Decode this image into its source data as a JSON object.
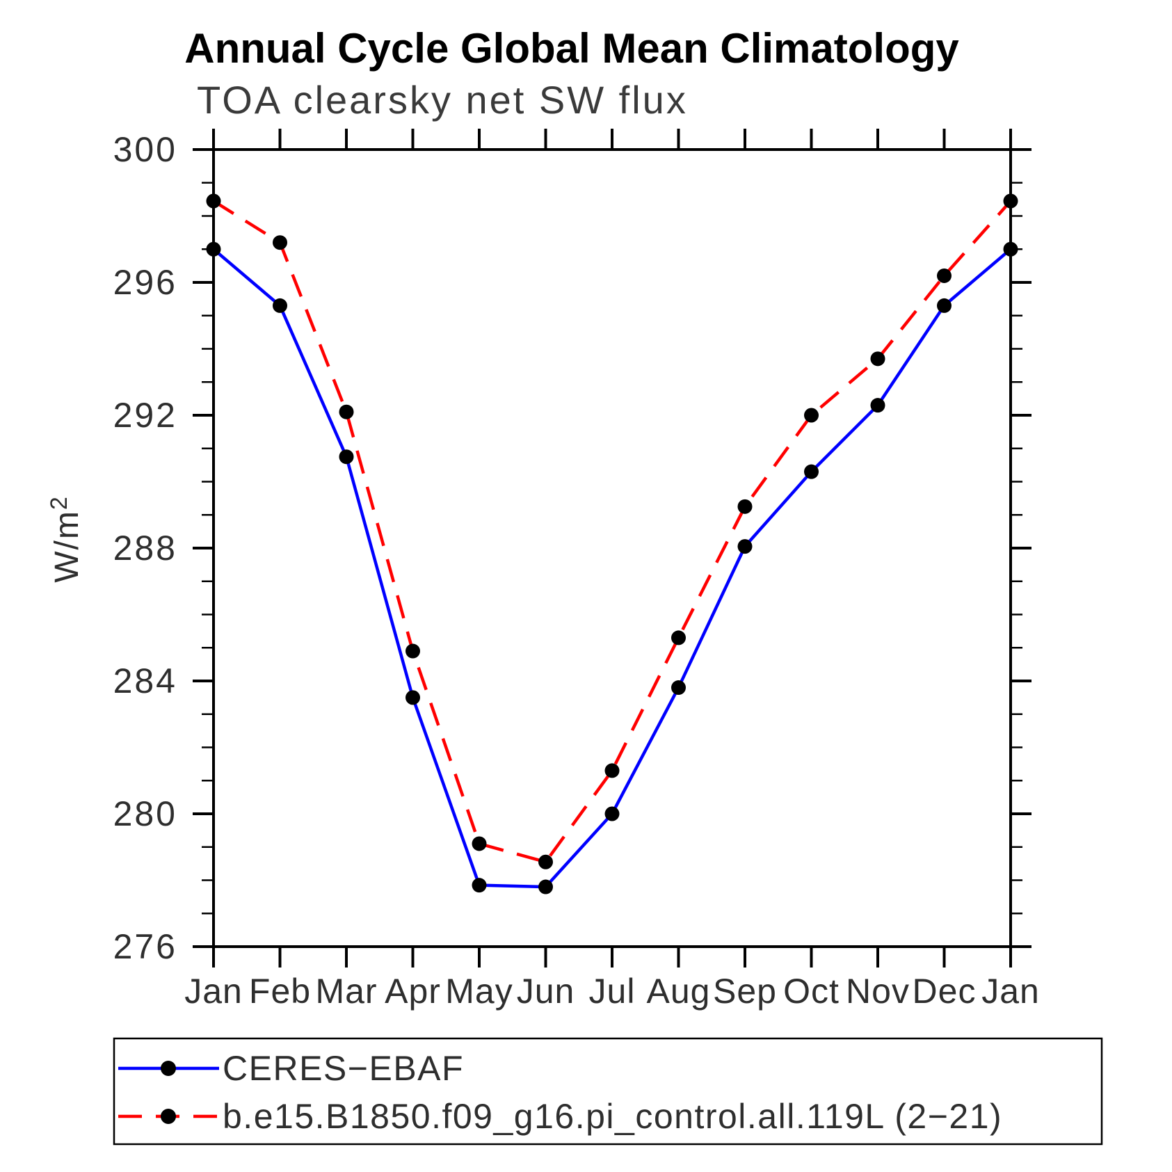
{
  "header": {
    "title": "Annual Cycle Global Mean Climatology",
    "subtitle": "TOA clearsky net SW flux"
  },
  "chart_data": {
    "type": "line",
    "title": "Annual Cycle Global Mean Climatology",
    "subtitle": "TOA clearsky net SW flux",
    "xlabel": "",
    "ylabel_main": "W/m",
    "ylabel_sup": "2",
    "ylabel_text": "W/m2",
    "categories": [
      "Jan",
      "Feb",
      "Mar",
      "Apr",
      "May",
      "Jun",
      "Jul",
      "Aug",
      "Sep",
      "Oct",
      "Nov",
      "Dec",
      "Jan"
    ],
    "ylim": [
      276,
      300
    ],
    "y_major_step": 4,
    "y_minor_step": 1,
    "y_major_ticks": [
      276,
      280,
      284,
      288,
      292,
      296,
      300
    ],
    "grid": false,
    "legend_position": "bottom",
    "axis_color": "#000000",
    "marker_color": "#000000",
    "series": [
      {
        "name": "CERES−EBAF",
        "color": "#0000ff",
        "style": "solid",
        "marker": "circle",
        "values": [
          297.0,
          295.3,
          290.75,
          283.5,
          277.85,
          277.8,
          280.0,
          283.8,
          288.05,
          290.3,
          292.3,
          295.3,
          297.0
        ]
      },
      {
        "name": "b.e15.B1850.f09_g16.pi_control.all.119L (2−21)",
        "color": "#ff0000",
        "style": "dashed",
        "marker": "circle",
        "values": [
          298.45,
          297.2,
          292.1,
          284.9,
          279.1,
          278.55,
          281.3,
          285.3,
          289.25,
          292.0,
          293.7,
          296.2,
          298.45
        ]
      }
    ]
  }
}
